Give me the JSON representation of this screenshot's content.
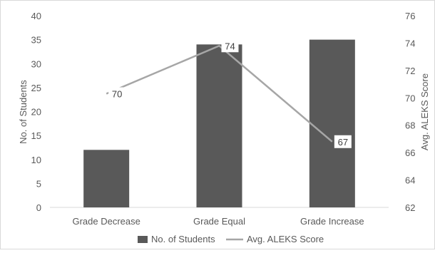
{
  "chart_data": {
    "type": "bar",
    "categories": [
      "Grade Decrease",
      "Grade Equal",
      "Grade Increase"
    ],
    "series": [
      {
        "name": "No. of Students",
        "type": "bar",
        "axis": "left",
        "color": "#595959",
        "values": [
          12,
          34,
          35
        ]
      },
      {
        "name": "Avg. ALEKS Score",
        "type": "line",
        "axis": "right",
        "color": "#a6a6a6",
        "values": [
          70.3,
          73.8,
          66.8
        ],
        "data_labels": [
          "70",
          "74",
          "67"
        ]
      }
    ],
    "ylabel": "No. of Students",
    "ylabel_right": "Avg. ALEKS Score",
    "ylim": [
      0,
      40
    ],
    "ylim_right": [
      62,
      76
    ],
    "yticks": [
      "0",
      "5",
      "10",
      "15",
      "20",
      "25",
      "30",
      "35",
      "40"
    ],
    "yticks_right": [
      "62",
      "64",
      "66",
      "68",
      "70",
      "72",
      "74",
      "76"
    ],
    "legend_position": "bottom",
    "grid": false,
    "title": ""
  }
}
